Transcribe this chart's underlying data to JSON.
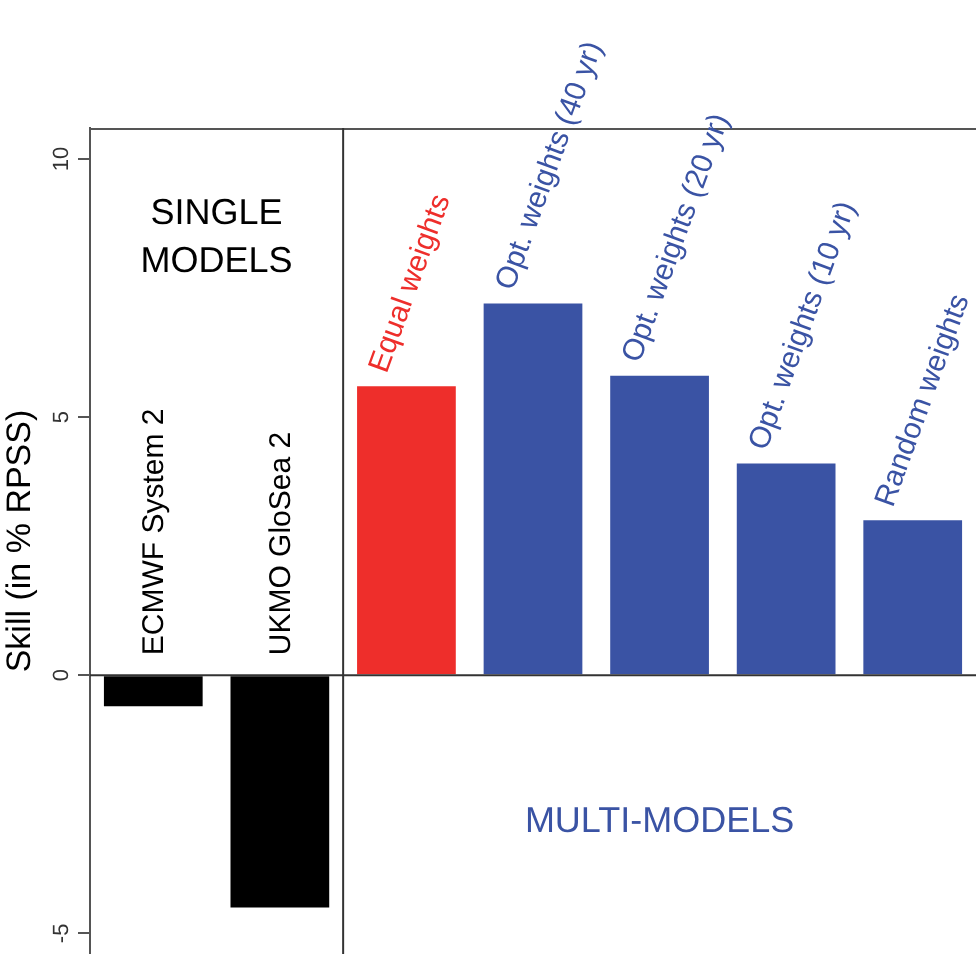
{
  "chart_data": {
    "type": "bar",
    "ylabel": "Skill (in % RPSS)",
    "categories": [
      "ECMWF System 2",
      "UKMO GloSea 2",
      "Equal weights",
      "Opt. weights (40 yr)",
      "Opt. weights (20 yr)",
      "Opt. weights (10 yr)",
      "Random weights"
    ],
    "values": [
      -0.6,
      -4.5,
      5.6,
      7.2,
      5.8,
      4.1,
      3.0
    ],
    "colors": [
      "#000000",
      "#000000",
      "#ee2e2b",
      "#3a53a4",
      "#3a53a4",
      "#3a53a4",
      "#3a53a4"
    ],
    "ylim": [
      -5.4,
      10.6
    ],
    "yticks": [
      -5,
      0,
      5,
      10
    ],
    "grid": false,
    "legend": false,
    "ref_lines": [
      {
        "axis": "y",
        "value": 0
      }
    ],
    "annotations": [
      "SINGLE MODELS",
      "MULTI-MODELS"
    ]
  }
}
